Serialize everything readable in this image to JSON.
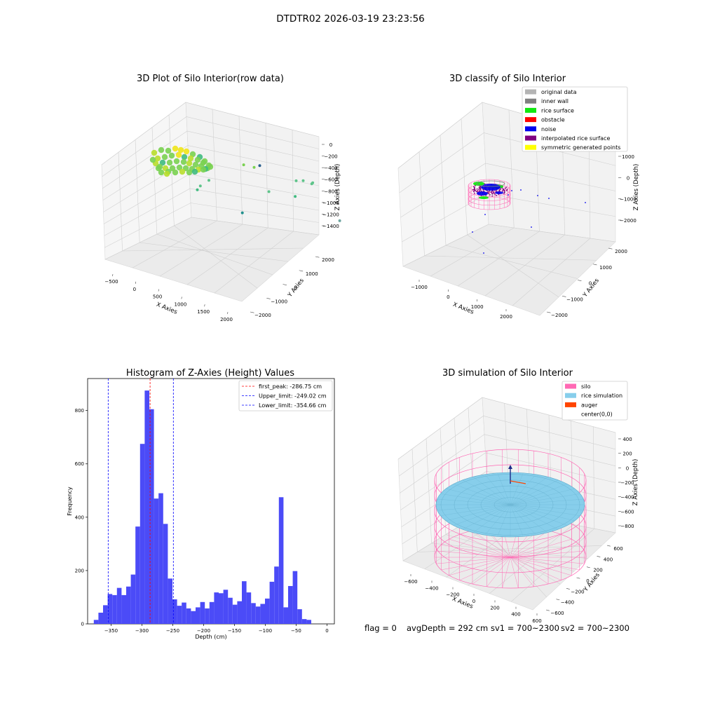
{
  "figure_title": "DTDTR02 2026-03-19 23:23:56",
  "status_line": {
    "flag": "flag = 0",
    "avg_depth": "avgDepth = 292 cm",
    "sv1": "sv1 = 700~2300",
    "sv2": "sv2 = 700~2300"
  },
  "chart_data": [
    {
      "type": "scatter",
      "title": "3D Plot of Silo Interior(row data)",
      "xlabel": "X Axies",
      "ylabel": "Y Axies",
      "zlabel": "Z Axies (Depth)",
      "x_ticks": [
        "−500",
        "0",
        "500",
        "1000",
        "1500",
        "2000"
      ],
      "y_ticks": [
        "−2000",
        "−1000",
        "0",
        "1000",
        "2000"
      ],
      "z_ticks": [
        "0",
        "−200",
        "−400",
        "−600",
        "−800",
        "−1000",
        "−1200",
        "−1400"
      ],
      "xlim": [
        -600,
        2100
      ],
      "ylim": [
        -2300,
        2300
      ],
      "zlim": [
        -1600,
        100
      ],
      "colors": {
        "high": "#f0e51a",
        "mid": "#7ad151",
        "low_mid": "#40bb80",
        "low": "#21908d",
        "deep": "#2a5e8c"
      },
      "points": [
        {
          "x": 350,
          "y": 1050,
          "z": -650,
          "c": "#2a5e8c"
        },
        {
          "x": 300,
          "y": 560,
          "z": -1250,
          "c": "#21908d"
        },
        {
          "x": 1600,
          "y": 1650,
          "z": -1350,
          "c": "#6ea5a0"
        },
        {
          "x": 1100,
          "y": 1000,
          "z": -950,
          "c": "#40bb80"
        },
        {
          "x": 1000,
          "y": 300,
          "z": -750,
          "c": "#5ec48a"
        },
        {
          "x": 1250,
          "y": 1300,
          "z": -800,
          "c": "#5ec48a"
        },
        {
          "x": 1270,
          "y": 1300,
          "z": -780,
          "c": "#5ec48a"
        },
        {
          "x": 1150,
          "y": 950,
          "z": -700,
          "c": "#5ec48a"
        },
        {
          "x": 1200,
          "y": 1100,
          "z": -720,
          "c": "#5ec48a"
        },
        {
          "x": 700,
          "y": 300,
          "z": -450,
          "c": "#7ad151"
        },
        {
          "x": 550,
          "y": 200,
          "z": -420,
          "c": "#7ad151"
        },
        {
          "x": 0,
          "y": -50,
          "z": -700,
          "c": "#5ec48a"
        },
        {
          "x": -50,
          "y": -250,
          "z": -750,
          "c": "#5ec48a"
        },
        {
          "x": -80,
          "y": -300,
          "z": -800,
          "c": "#40bb80"
        }
      ]
    },
    {
      "type": "scatter",
      "title": "3D classify of Silo Interior",
      "xlabel": "X Axies",
      "ylabel": "Y Axies",
      "zlabel": "Z Axies (Depth)",
      "x_ticks": [
        "−1000",
        "0",
        "1000",
        "2000"
      ],
      "y_ticks": [
        "−2000",
        "−1000",
        "0",
        "1000",
        "2000"
      ],
      "z_ticks": [
        "1000",
        "0",
        "−1000",
        "−2000"
      ],
      "legend": [
        {
          "label": "original data",
          "color": "#b4b4b4"
        },
        {
          "label": "inner wall",
          "color": "#808080"
        },
        {
          "label": "rice surface",
          "color": "#11e811"
        },
        {
          "label": "obstacle",
          "color": "#ff0000"
        },
        {
          "label": "noise",
          "color": "#0000ee"
        },
        {
          "label": "interpolated rice surface",
          "color": "#800080"
        },
        {
          "label": "symmetric generated points",
          "color": "#ffff00"
        }
      ],
      "wall_color": "#ff69b4"
    },
    {
      "type": "bar",
      "title": "Histogram of Z-Axies (Height) Values",
      "xlabel": "Depth (cm)",
      "ylabel": "Frequency",
      "xlim": [
        -388,
        12
      ],
      "ylim": [
        0,
        920
      ],
      "x_ticks": [
        {
          "v": -350,
          "label": "−350"
        },
        {
          "v": -300,
          "label": "−300"
        },
        {
          "v": -250,
          "label": "−250"
        },
        {
          "v": -200,
          "label": "−200"
        },
        {
          "v": -150,
          "label": "−150"
        },
        {
          "v": -100,
          "label": "−100"
        },
        {
          "v": -50,
          "label": "−50"
        },
        {
          "v": 0,
          "label": "0"
        }
      ],
      "y_ticks": [
        {
          "v": 0,
          "label": "0"
        },
        {
          "v": 200,
          "label": "200"
        },
        {
          "v": 400,
          "label": "400"
        },
        {
          "v": 600,
          "label": "600"
        },
        {
          "v": 800,
          "label": "800"
        }
      ],
      "bar_color": "#4b4bf7",
      "bin_start": -378,
      "bin_width": 7.5,
      "values": [
        15,
        42,
        70,
        112,
        108,
        135,
        108,
        140,
        185,
        365,
        675,
        875,
        805,
        470,
        490,
        375,
        170,
        92,
        68,
        80,
        58,
        48,
        62,
        82,
        58,
        82,
        118,
        115,
        128,
        98,
        72,
        85,
        160,
        118,
        78,
        65,
        75,
        95,
        158,
        215,
        475,
        62,
        142,
        198,
        55,
        18,
        15
      ],
      "vlines": [
        {
          "x": -286.75,
          "label": "first_peak: -286.75 cm",
          "color": "#ff0000"
        },
        {
          "x": -249.02,
          "label": "Upper_limit: -249.02 cm",
          "color": "#0000ff"
        },
        {
          "x": -354.66,
          "label": "Lower_limit: -354.66 cm",
          "color": "#0000ff"
        }
      ]
    },
    {
      "type": "surface",
      "title": "3D simulation of Silo Interior",
      "xlabel": "X Axies",
      "ylabel": "Y Axies",
      "zlabel": "Z Axies (Depth)",
      "x_ticks": [
        "−600",
        "−400",
        "−200",
        "0",
        "200",
        "400",
        "600"
      ],
      "y_ticks": [
        "−600",
        "−400",
        "−200",
        "0",
        "200",
        "400",
        "600"
      ],
      "z_ticks": [
        "400",
        "200",
        "0",
        "−200",
        "−400",
        "−600",
        "−800"
      ],
      "legend": [
        {
          "label": "silo",
          "color": "#ff69b4"
        },
        {
          "label": "rice simulation",
          "color": "#87ceeb"
        },
        {
          "label": "auger",
          "color": "#ff4500"
        },
        {
          "label": "center(0,0)",
          "color": "#ffffff"
        }
      ]
    }
  ]
}
